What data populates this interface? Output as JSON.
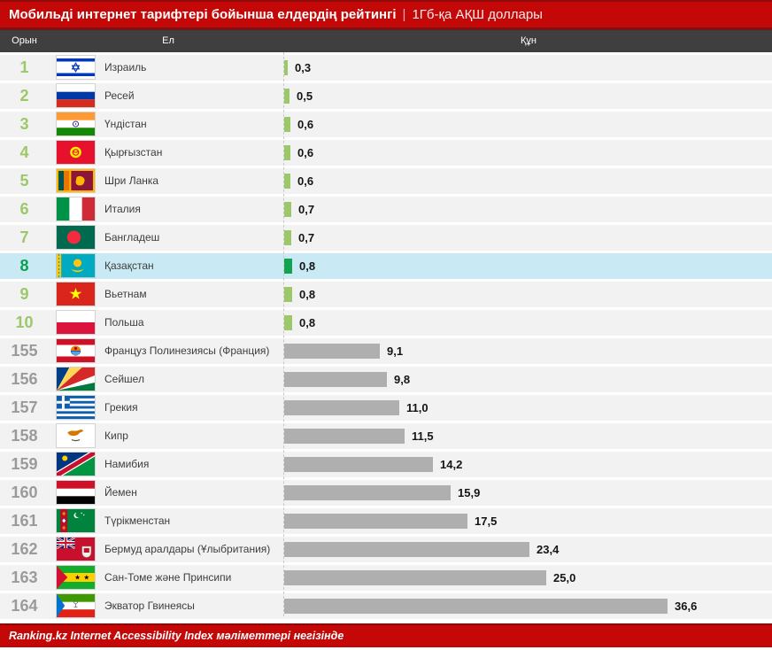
{
  "title": {
    "main": "Мобильді интернет тарифтері бойынша елдердің рейтингі",
    "separator": "|",
    "sub": "1Гб-қа АҚШ доллары"
  },
  "columns": {
    "rank": "Орын",
    "country": "Ел",
    "cost": "Құн"
  },
  "footer": {
    "source": "Ranking.kz Internet Accessibility Index мәліметтері негізінде"
  },
  "colors": {
    "title_bar_red": "#C40808",
    "dark_red_border": "#8B0303",
    "column_header_gray": "#3F3F3F",
    "row_bg": "#F2F2F2",
    "highlight_row_bg": "#C9EAF5",
    "green_light": "#9CC869",
    "green_dark": "#13A24F",
    "gray_bar": "#AFAFAF",
    "gray_rank": "#9A9A9A"
  },
  "chart_data": {
    "type": "bar",
    "orientation": "horizontal",
    "title": "Мобильді интернет тарифтері бойынша елдердің рейтингі",
    "subtitle": "1Гб-қа АҚШ доллары",
    "unit": "USD per 1GB",
    "value_range": [
      0,
      36.6
    ],
    "max_value": 36.6,
    "categories": [
      "Израиль",
      "Ресей",
      "Үндістан",
      "Қырғызстан",
      "Шри Ланка",
      "Италия",
      "Бангладеш",
      "Қазақстан",
      "Вьетнам",
      "Польша",
      "Француз Полинезиясы (Франция)",
      "Сейшел",
      "Грекия",
      "Кипр",
      "Намибия",
      "Йемен",
      "Түрікменстан",
      "Бермуд аралдары (Ұлыбритания)",
      "Сан-Томе және Принсипи",
      "Экватор Гвинеясы"
    ],
    "values": [
      0.3,
      0.5,
      0.6,
      0.6,
      0.6,
      0.7,
      0.7,
      0.8,
      0.8,
      0.8,
      9.1,
      9.8,
      11.0,
      11.5,
      14.2,
      15.9,
      17.5,
      23.4,
      25.0,
      36.6
    ],
    "rows": [
      {
        "rank": 1,
        "country": "Израиль",
        "value": 0.3,
        "label": "0,3",
        "flag": "israel",
        "group": "top"
      },
      {
        "rank": 2,
        "country": "Ресей",
        "value": 0.5,
        "label": "0,5",
        "flag": "russia",
        "group": "top"
      },
      {
        "rank": 3,
        "country": "Үндістан",
        "value": 0.6,
        "label": "0,6",
        "flag": "india",
        "group": "top"
      },
      {
        "rank": 4,
        "country": "Қырғызстан",
        "value": 0.6,
        "label": "0,6",
        "flag": "kyrgyzstan",
        "group": "top"
      },
      {
        "rank": 5,
        "country": "Шри Ланка",
        "value": 0.6,
        "label": "0,6",
        "flag": "sri_lanka",
        "group": "top"
      },
      {
        "rank": 6,
        "country": "Италия",
        "value": 0.7,
        "label": "0,7",
        "flag": "italy",
        "group": "top"
      },
      {
        "rank": 7,
        "country": "Бангладеш",
        "value": 0.7,
        "label": "0,7",
        "flag": "bangladesh",
        "group": "top"
      },
      {
        "rank": 8,
        "country": "Қазақстан",
        "value": 0.8,
        "label": "0,8",
        "flag": "kazakhstan",
        "group": "highlight"
      },
      {
        "rank": 9,
        "country": "Вьетнам",
        "value": 0.8,
        "label": "0,8",
        "flag": "vietnam",
        "group": "top"
      },
      {
        "rank": 10,
        "country": "Польша",
        "value": 0.8,
        "label": "0,8",
        "flag": "poland",
        "group": "top"
      },
      {
        "rank": 155,
        "country": "Француз Полинезиясы (Франция)",
        "value": 9.1,
        "label": "9,1",
        "flag": "french_polynesia",
        "group": "bottom"
      },
      {
        "rank": 156,
        "country": "Сейшел",
        "value": 9.8,
        "label": "9,8",
        "flag": "seychelles",
        "group": "bottom"
      },
      {
        "rank": 157,
        "country": "Грекия",
        "value": 11.0,
        "label": "11,0",
        "flag": "greece",
        "group": "bottom"
      },
      {
        "rank": 158,
        "country": "Кипр",
        "value": 11.5,
        "label": "11,5",
        "flag": "cyprus",
        "group": "bottom"
      },
      {
        "rank": 159,
        "country": "Намибия",
        "value": 14.2,
        "label": "14,2",
        "flag": "namibia",
        "group": "bottom"
      },
      {
        "rank": 160,
        "country": "Йемен",
        "value": 15.9,
        "label": "15,9",
        "flag": "yemen",
        "group": "bottom"
      },
      {
        "rank": 161,
        "country": "Түрікменстан",
        "value": 17.5,
        "label": "17,5",
        "flag": "turkmenistan",
        "group": "bottom"
      },
      {
        "rank": 162,
        "country": "Бермуд аралдары (Ұлыбритания)",
        "value": 23.4,
        "label": "23,4",
        "flag": "bermuda",
        "group": "bottom"
      },
      {
        "rank": 163,
        "country": "Сан-Томе және Принсипи",
        "value": 25.0,
        "label": "25,0",
        "flag": "sao_tome",
        "group": "bottom"
      },
      {
        "rank": 164,
        "country": "Экватор Гвинеясы",
        "value": 36.6,
        "label": "36,6",
        "flag": "eq_guinea",
        "group": "bottom"
      }
    ]
  }
}
